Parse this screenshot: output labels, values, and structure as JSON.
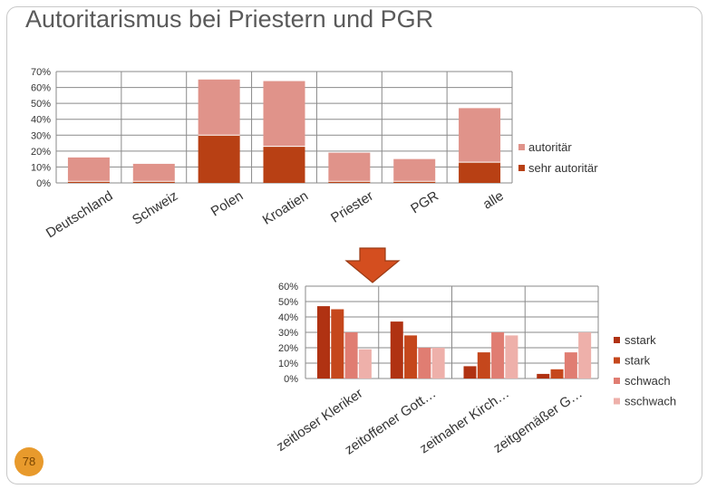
{
  "slide": {
    "title": "Autoritarismus bei Priestern und PGR",
    "page_number": "78"
  },
  "colors": {
    "autoritaer": "#e0938a",
    "sehr_autoritaer": "#b84014",
    "sstark": "#b03212",
    "stark": "#c5471c",
    "schwach": "#e07d72",
    "sschwach": "#eeb0aa",
    "arrow": "#d44e1f"
  },
  "chart_data": [
    {
      "type": "bar",
      "stacked": true,
      "categories": [
        "Deutschland",
        "Schweiz",
        "Polen",
        "Kroatien",
        "Priester",
        "PGR",
        "alle"
      ],
      "series": [
        {
          "name": "sehr autoritär",
          "values": [
            1,
            1,
            30,
            23,
            1,
            1,
            13
          ]
        },
        {
          "name": "autoritär",
          "values": [
            15,
            11,
            35,
            41,
            18,
            14,
            34
          ]
        }
      ],
      "yticks": [
        "0%",
        "10%",
        "20%",
        "30%",
        "40%",
        "50%",
        "60%",
        "70%"
      ],
      "ylim": [
        0,
        70
      ],
      "grid": true,
      "legend_position": "right",
      "legend_order": [
        "autoritär",
        "sehr autoritär"
      ]
    },
    {
      "type": "bar",
      "categories": [
        "zeitloser Kleriker",
        "zeitoffener Gott…",
        "zeitnaher Kirch…",
        "zeitgemäßer G…"
      ],
      "series": [
        {
          "name": "sstark",
          "values": [
            47,
            37,
            8,
            3
          ]
        },
        {
          "name": "stark",
          "values": [
            45,
            28,
            17,
            6
          ]
        },
        {
          "name": "schwach",
          "values": [
            30,
            20,
            30,
            17
          ]
        },
        {
          "name": "sschwach",
          "values": [
            19,
            20,
            28,
            30
          ]
        }
      ],
      "yticks": [
        "0%",
        "10%",
        "20%",
        "30%",
        "40%",
        "50%",
        "60%"
      ],
      "ylim": [
        0,
        60
      ],
      "grid": true,
      "legend_position": "right"
    }
  ]
}
